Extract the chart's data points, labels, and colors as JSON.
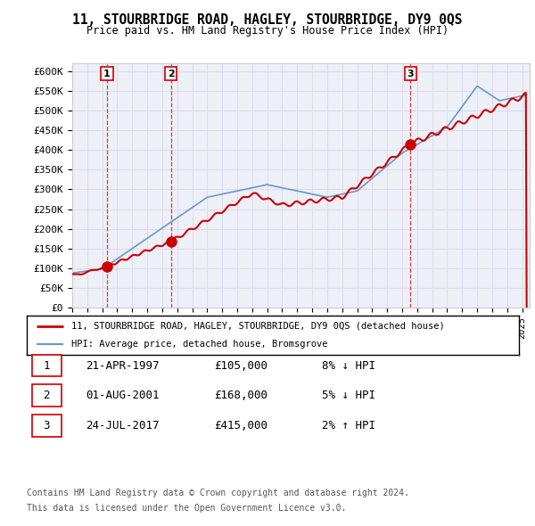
{
  "title": "11, STOURBRIDGE ROAD, HAGLEY, STOURBRIDGE, DY9 0QS",
  "subtitle": "Price paid vs. HM Land Registry's House Price Index (HPI)",
  "ylabel_ticks": [
    "£0",
    "£50K",
    "£100K",
    "£150K",
    "£200K",
    "£250K",
    "£300K",
    "£350K",
    "£400K",
    "£450K",
    "£500K",
    "£550K",
    "£600K"
  ],
  "ytick_values": [
    0,
    50000,
    100000,
    150000,
    200000,
    250000,
    300000,
    350000,
    400000,
    450000,
    500000,
    550000,
    600000
  ],
  "xlim_start": 1995.0,
  "xlim_end": 2025.5,
  "ylim_min": 0,
  "ylim_max": 620000,
  "transactions": [
    {
      "num": 1,
      "date_dec": 1997.31,
      "price": 105000,
      "label": "21-APR-1997",
      "price_str": "£105,000",
      "rel": "8% ↓ HPI"
    },
    {
      "num": 2,
      "date_dec": 2001.58,
      "price": 168000,
      "label": "01-AUG-2001",
      "price_str": "£168,000",
      "rel": "5% ↓ HPI"
    },
    {
      "num": 3,
      "date_dec": 2017.56,
      "price": 415000,
      "label": "24-JUL-2017",
      "price_str": "£415,000",
      "rel": "2% ↑ HPI"
    }
  ],
  "legend_line1": "11, STOURBRIDGE ROAD, HAGLEY, STOURBRIDGE, DY9 0QS (detached house)",
  "legend_line2": "HPI: Average price, detached house, Bromsgrove",
  "footer1": "Contains HM Land Registry data © Crown copyright and database right 2024.",
  "footer2": "This data is licensed under the Open Government Licence v3.0.",
  "price_line_color": "#cc0000",
  "hpi_line_color": "#6699cc",
  "grid_color": "#ddddee",
  "bg_color": "#eef0f8",
  "transaction_marker_color": "#cc0000",
  "dashed_line_color": "#cc0000"
}
